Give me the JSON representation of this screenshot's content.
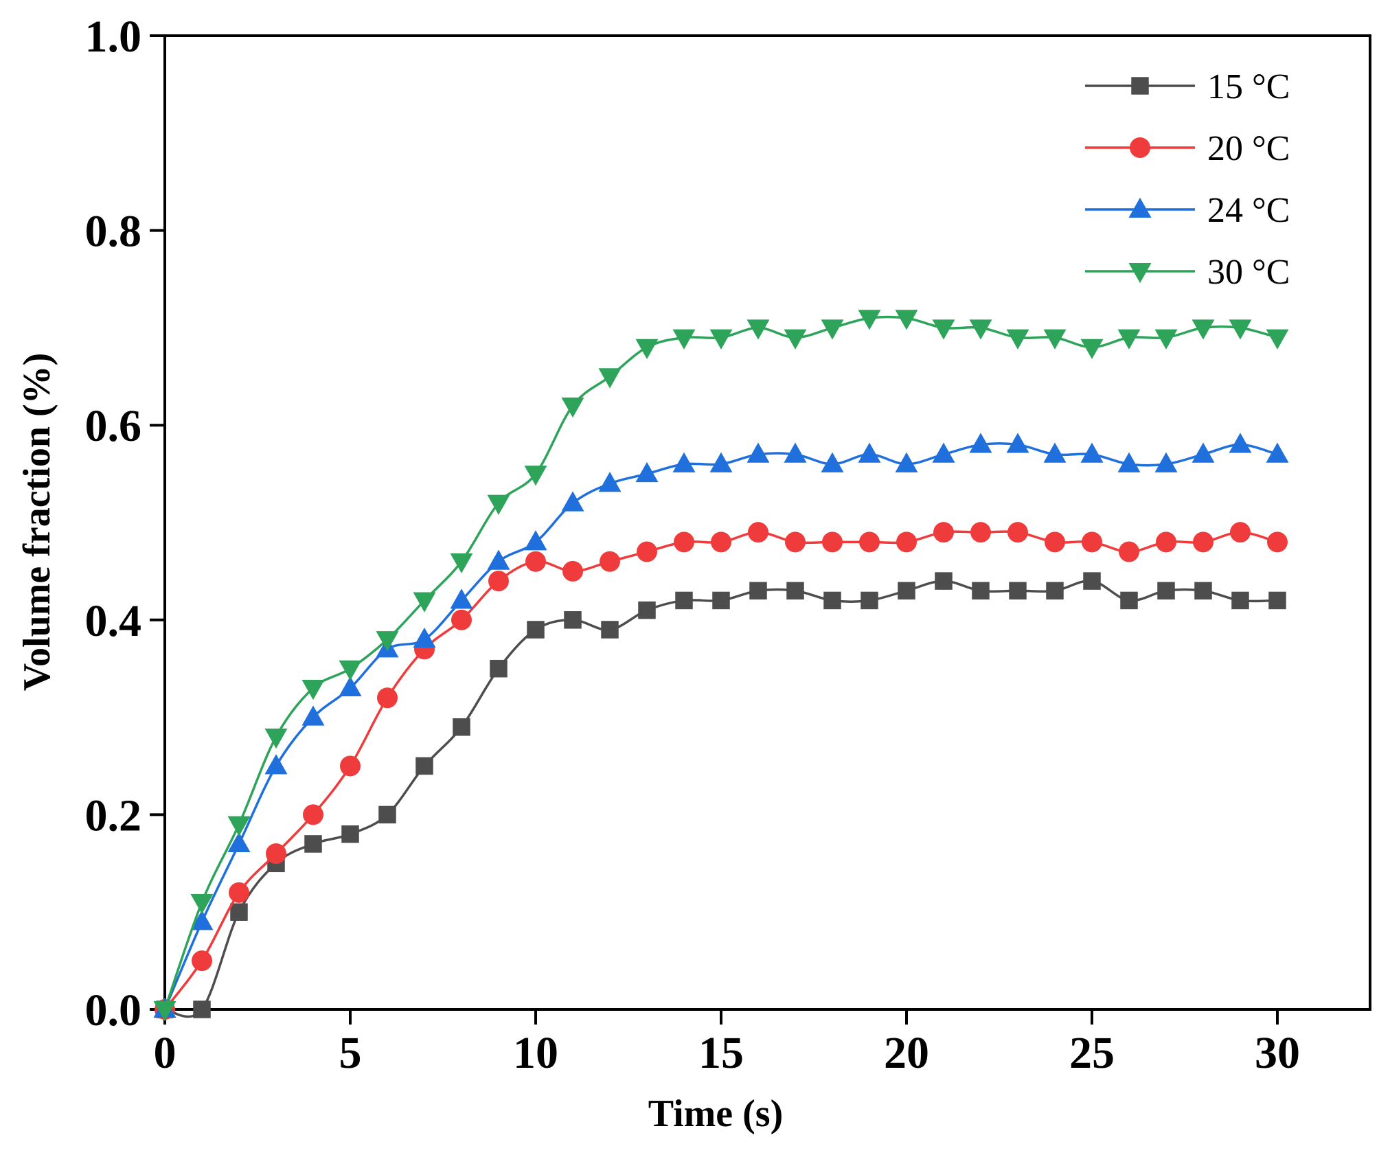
{
  "chart_data": {
    "type": "line",
    "title": "",
    "xlabel": "Time (s)",
    "ylabel": "Volume fraction (%)",
    "xlim": [
      0,
      32.5
    ],
    "ylim": [
      0,
      1.0
    ],
    "xticks": [
      "0",
      "5",
      "10",
      "15",
      "20",
      "25",
      "30"
    ],
    "yticks": [
      "0.0",
      "0.2",
      "0.4",
      "0.6",
      "0.8",
      "1.0"
    ],
    "legend_position": "top-right",
    "series": [
      {
        "name": "15 °C",
        "color": "#4d4d4d",
        "marker": "square",
        "x": [
          0,
          1,
          2,
          3,
          4,
          5,
          6,
          7,
          8,
          9,
          10,
          11,
          12,
          13,
          14,
          15,
          16,
          17,
          18,
          19,
          20,
          21,
          22,
          23,
          24,
          25,
          26,
          27,
          28,
          29,
          30
        ],
        "values": [
          0,
          0,
          0.1,
          0.15,
          0.17,
          0.18,
          0.2,
          0.25,
          0.29,
          0.35,
          0.39,
          0.4,
          0.39,
          0.41,
          0.42,
          0.42,
          0.43,
          0.43,
          0.42,
          0.42,
          0.43,
          0.44,
          0.43,
          0.43,
          0.43,
          0.44,
          0.42,
          0.43,
          0.43,
          0.42,
          0.42
        ]
      },
      {
        "name": "20 °C",
        "color": "#ef3b3b",
        "marker": "circle",
        "x": [
          0,
          1,
          2,
          3,
          4,
          5,
          6,
          7,
          8,
          9,
          10,
          11,
          12,
          13,
          14,
          15,
          16,
          17,
          18,
          19,
          20,
          21,
          22,
          23,
          24,
          25,
          26,
          27,
          28,
          29,
          30
        ],
        "values": [
          0,
          0.05,
          0.12,
          0.16,
          0.2,
          0.25,
          0.32,
          0.37,
          0.4,
          0.44,
          0.46,
          0.45,
          0.46,
          0.47,
          0.48,
          0.48,
          0.49,
          0.48,
          0.48,
          0.48,
          0.48,
          0.49,
          0.49,
          0.49,
          0.48,
          0.48,
          0.47,
          0.48,
          0.48,
          0.49,
          0.48
        ]
      },
      {
        "name": "24 °C",
        "color": "#1f6fdc",
        "marker": "triangle-up",
        "x": [
          0,
          1,
          2,
          3,
          4,
          5,
          6,
          7,
          8,
          9,
          10,
          11,
          12,
          13,
          14,
          15,
          16,
          17,
          18,
          19,
          20,
          21,
          22,
          23,
          24,
          25,
          26,
          27,
          28,
          29,
          30
        ],
        "values": [
          0,
          0.09,
          0.17,
          0.25,
          0.3,
          0.33,
          0.37,
          0.38,
          0.42,
          0.46,
          0.48,
          0.52,
          0.54,
          0.55,
          0.56,
          0.56,
          0.57,
          0.57,
          0.56,
          0.57,
          0.56,
          0.57,
          0.58,
          0.58,
          0.57,
          0.57,
          0.56,
          0.56,
          0.57,
          0.58,
          0.57
        ]
      },
      {
        "name": "30 °C",
        "color": "#2ea35a",
        "marker": "triangle-down",
        "x": [
          0,
          1,
          2,
          3,
          4,
          5,
          6,
          7,
          8,
          9,
          10,
          11,
          12,
          13,
          14,
          15,
          16,
          17,
          18,
          19,
          20,
          21,
          22,
          23,
          24,
          25,
          26,
          27,
          28,
          29,
          30
        ],
        "values": [
          0,
          0.11,
          0.19,
          0.28,
          0.33,
          0.35,
          0.38,
          0.42,
          0.46,
          0.52,
          0.55,
          0.62,
          0.65,
          0.68,
          0.69,
          0.69,
          0.7,
          0.69,
          0.7,
          0.71,
          0.71,
          0.7,
          0.7,
          0.69,
          0.69,
          0.68,
          0.69,
          0.69,
          0.7,
          0.7,
          0.69
        ]
      }
    ]
  }
}
